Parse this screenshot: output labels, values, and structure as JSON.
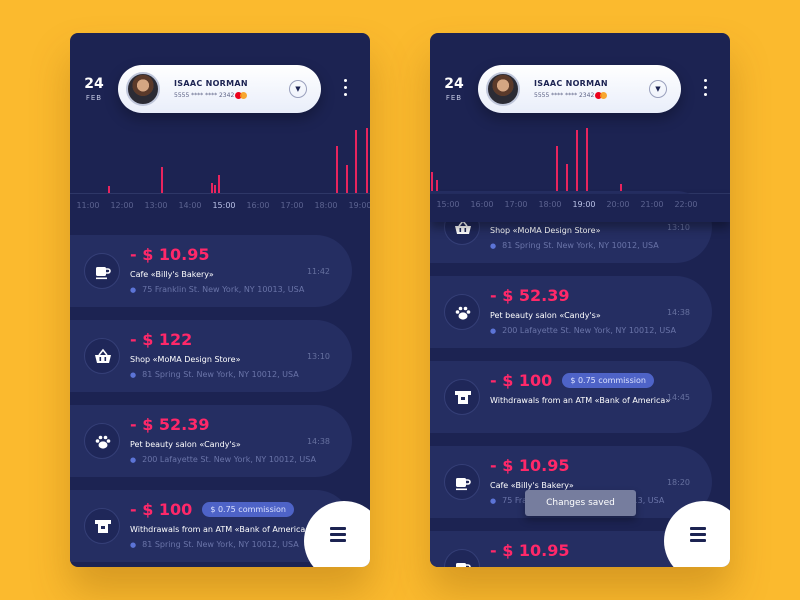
{
  "left": {
    "date": {
      "day": "24",
      "month": "FEB"
    },
    "profile": {
      "name": "ISAAC NORMAN",
      "card": "5555 **** **** 2342"
    },
    "timeline": [
      "11:00",
      "12:00",
      "13:00",
      "14:00",
      "15:00",
      "16:00",
      "17:00",
      "18:00",
      "19:00"
    ],
    "active_tick": 4,
    "transactions": [
      {
        "amount": "- $ 10.95",
        "merchant": "Cafe «Billy's Bakery»",
        "address": "75 Franklin St. New York, NY 10013, USA",
        "time": "11:42",
        "icon": "cup-icon"
      },
      {
        "amount": "- $ 122",
        "merchant": "Shop «MoMA Design Store»",
        "address": "81 Spring St. New York, NY 10012, USA",
        "time": "13:10",
        "icon": "basket-icon"
      },
      {
        "amount": "- $ 52.39",
        "merchant": "Pet beauty salon «Candy's»",
        "address": "200 Lafayette St. New York, NY 10012, USA",
        "time": "14:38",
        "icon": "paw-icon"
      },
      {
        "amount": "- $ 100",
        "commission": "$ 0.75 commission",
        "merchant": "Withdrawals from an ATM «Bank of America»",
        "address": "81 Spring St. New York, NY 10012, USA",
        "time": "",
        "icon": "atm-icon"
      }
    ]
  },
  "right": {
    "date": {
      "day": "24",
      "month": "FEB"
    },
    "profile": {
      "name": "ISAAC NORMAN",
      "card": "5555 **** **** 2342"
    },
    "timeline": [
      "15:00",
      "16:00",
      "17:00",
      "18:00",
      "19:00",
      "20:00",
      "21:00",
      "22:00"
    ],
    "active_tick": 4,
    "transactions": [
      {
        "amount": "",
        "merchant": "Shop «MoMA Design Store»",
        "address": "81 Spring St. New York, NY 10012, USA",
        "time": "13:10",
        "icon": "basket-icon"
      },
      {
        "amount": "- $ 52.39",
        "merchant": "Pet beauty salon «Candy's»",
        "address": "200 Lafayette St. New York, NY 10012, USA",
        "time": "14:38",
        "icon": "paw-icon"
      },
      {
        "amount": "- $ 100",
        "commission": "$ 0.75 commission",
        "merchant": "Withdrawals from an ATM «Bank of America»",
        "address": "",
        "time": "14:45",
        "icon": "atm-icon"
      },
      {
        "amount": "- $ 10.95",
        "merchant": "Cafe «Billy's Bakery»",
        "address": "75 Franklin St. New York, NY 10013, USA",
        "time": "18:20",
        "icon": "cup-icon"
      },
      {
        "amount": "- $ 10.95",
        "merchant": "",
        "address": "",
        "time": "",
        "icon": "cup-icon"
      }
    ],
    "toast": "Changes saved"
  },
  "colors": {
    "background": "#FBBA2E",
    "panel": "#1C2352",
    "card": "#252E62",
    "accent": "#FF2869",
    "bars": "#E8245E",
    "badge": "#4E63C7"
  }
}
